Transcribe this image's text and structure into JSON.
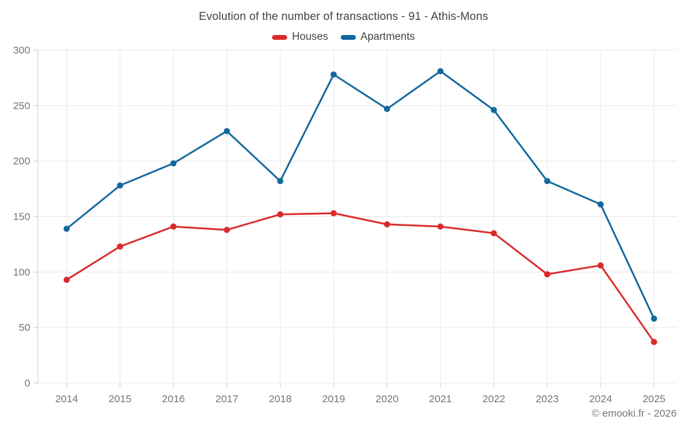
{
  "chart": {
    "title": "Evolution of the number of transactions - 91 - Athis-Mons",
    "footer": "© emooki.fr - 2026"
  },
  "chart_data": {
    "type": "line",
    "title": "Evolution of the number of transactions - 91 - Athis-Mons",
    "x": [
      "2014",
      "2015",
      "2016",
      "2017",
      "2018",
      "2019",
      "2020",
      "2021",
      "2022",
      "2023",
      "2024",
      "2025"
    ],
    "series": [
      {
        "name": "Houses",
        "color": "#d92b2b",
        "values": [
          93,
          123,
          141,
          138,
          152,
          153,
          143,
          141,
          135,
          98,
          106,
          37
        ]
      },
      {
        "name": "Apartments",
        "color": "#12689e",
        "values": [
          139,
          178,
          198,
          227,
          182,
          278,
          247,
          281,
          246,
          182,
          161,
          58
        ]
      }
    ],
    "xlabel": "",
    "ylabel": "",
    "ylim": [
      0,
      300
    ],
    "yticks": [
      0,
      50,
      100,
      150,
      200,
      250,
      300
    ],
    "grid": true,
    "legend_position": "top",
    "grid_color": "#e9e9e9",
    "axis_color": "#cccccc",
    "text_color": "#757575"
  }
}
